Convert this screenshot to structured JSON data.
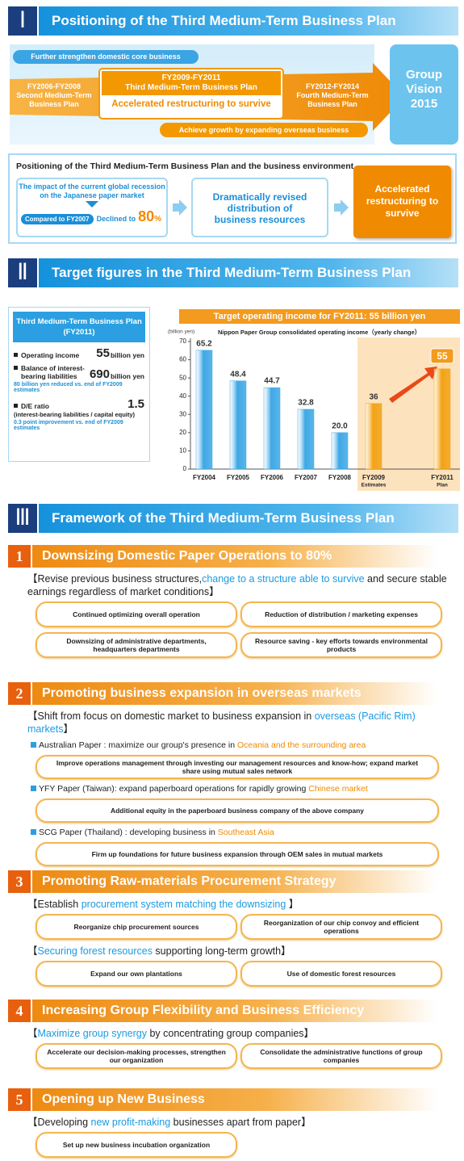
{
  "section1": {
    "numeral": "Ⅰ",
    "title": "Positioning of the Third Medium-Term Business Plan",
    "band_top": "Further strengthen domestic core business",
    "previous": {
      "period": "FY2006-FY2008",
      "name": "Second Medium-Term Business Plan"
    },
    "current": {
      "period": "FY2009-FY2011",
      "name": "Third Medium-Term Business Plan",
      "theme": "Accelerated restructuring to survive"
    },
    "next": {
      "period": "FY2012-FY2014",
      "name": "Fourth Medium-Term Business Plan"
    },
    "band_bottom": "Achieve growth by expanding overseas business",
    "vision": [
      "Group",
      "Vision",
      "2015"
    ],
    "environment": {
      "title": "Positioning of the Third Medium-Term Business Plan and the business environment",
      "impact": "The impact of the current global recession on the Japanese paper market",
      "compared": "Compared to FY2007",
      "declined": "Declined to",
      "figure": "80",
      "unit": "%",
      "response": "Dramatically revised distribution of business resources",
      "result": "Accelerated restructuring to survive"
    }
  },
  "section2": {
    "numeral": "Ⅱ",
    "title": "Target figures in the Third Medium-Term Business Plan",
    "targets": {
      "title": "Third Medium-Term Business Plan",
      "period": "(FY2011)",
      "items": [
        {
          "label": "Operating income",
          "value": "55",
          "unit": "billion yen"
        },
        {
          "label": "Balance of interest-bearing liabilities",
          "value": "690",
          "unit": "billion yen",
          "note": "80 billion yen reduced vs. end of FY2009 estimates"
        },
        {
          "label": "D/E ratio",
          "value": "1.5",
          "detail": "(interest-bearing liabilities / capital equity)",
          "note": "0.3 point improvement vs. end of FY2009 estimates"
        }
      ]
    },
    "chart_data": {
      "type": "bar",
      "title": "Target operating income for FY2011: 55 billion yen",
      "subtitle": "Nippon Paper Group consolidated operating income（yearly change）",
      "y_label": "(billion yen)",
      "categories": [
        "FY2004",
        "FY2005",
        "FY2006",
        "FY2007",
        "FY2008",
        "FY2009",
        "FY2011"
      ],
      "category_notes": [
        null,
        null,
        null,
        null,
        null,
        "Estimates",
        "Plan"
      ],
      "values": [
        65.2,
        48.4,
        44.7,
        32.8,
        20.0,
        36,
        55
      ],
      "value_labels": [
        "65.2",
        "48.4",
        "44.7",
        "32.8",
        "20.0",
        "36",
        "55"
      ],
      "colors": [
        "#3ea8e6",
        "#3ea8e6",
        "#3ea8e6",
        "#3ea8e6",
        "#3ea8e6",
        "#f2a316",
        "#f2a316"
      ],
      "ylim": [
        0,
        70
      ],
      "yticks": [
        0,
        10,
        20,
        30,
        40,
        50,
        60,
        70
      ],
      "grid": false
    }
  },
  "section3": {
    "numeral": "Ⅲ",
    "title": "Framework of the Third Medium-Term Business Plan",
    "items": [
      {
        "number": "1",
        "title": "Downsizing Domestic Paper Operations to 80%",
        "groups": [
          {
            "heading": [
              "【Revise previous business structures,",
              "change to a structure able to survive",
              " and secure stable earnings regardless of market conditions】"
            ],
            "pills": [
              "Continued optimizing overall operation",
              "Reduction of distribution / marketing expenses",
              "Downsizing of administrative departments, headquarters departments",
              "Resource saving  - key efforts towards environmental products"
            ]
          }
        ]
      },
      {
        "number": "2",
        "title": "Promoting business expansion in overseas markets",
        "groups": [
          {
            "heading": [
              "【Shift from focus on domestic market to business expansion in ",
              "overseas (Pacific Rim) markets",
              "】"
            ],
            "pills": []
          }
        ],
        "regions": [
          {
            "parts": [
              "Australian Paper : maximize our group's presence in ",
              "Oceania and the surrounding area"
            ],
            "pills": [
              "Improve operations management through investing our management resources and know-how; expand market share using mutual sales network"
            ]
          },
          {
            "parts": [
              "YFY Paper (Taiwan): expand paperboard operations for rapidly growing ",
              "Chinese market"
            ],
            "pills": [
              "Additional equity in the paperboard business company of the above company"
            ]
          },
          {
            "parts": [
              "SCG Paper (Thailand) : developing business in ",
              "Southeast Asia"
            ],
            "pills": [
              "Firm up foundations for future business expansion through OEM sales in mutual markets"
            ]
          }
        ]
      },
      {
        "number": "3",
        "title": "Promoting Raw-materials Procurement Strategy",
        "groups": [
          {
            "heading": [
              "【Establish ",
              "procurement system matching the downsizing",
              " 】"
            ],
            "pills": [
              "Reorganize chip procurement sources",
              "Reorganization of our chip convoy and efficient operations"
            ]
          },
          {
            "heading": [
              "【",
              "Securing forest resources",
              " supporting long-term growth】"
            ],
            "pills": [
              "Expand our own plantations",
              "Use of domestic forest resources"
            ]
          }
        ]
      },
      {
        "number": "4",
        "title": "Increasing Group Flexibility and Business Efficiency",
        "groups": [
          {
            "heading": [
              "【",
              "Maximize group synergy",
              " by concentrating group companies】"
            ],
            "pills": [
              "Accelerate our decision-making processes, strengthen our organization",
              "Consolidate the administrative functions of group companies"
            ]
          }
        ]
      },
      {
        "number": "5",
        "title": "Opening up New Business",
        "groups": [
          {
            "heading": [
              "【Developing ",
              "new profit-making",
              " businesses apart from paper】"
            ],
            "pills": [
              "Set up new business incubation organization"
            ]
          }
        ]
      }
    ]
  }
}
